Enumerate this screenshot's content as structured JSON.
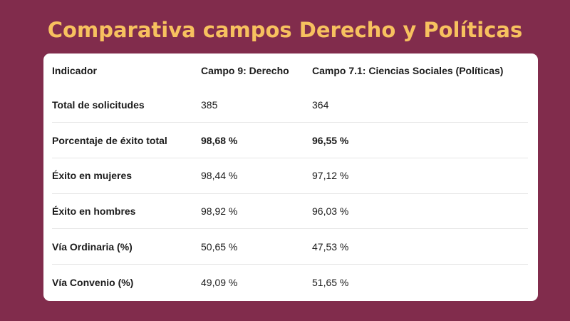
{
  "title": "Comparativa campos Derecho y Políticas",
  "table": {
    "headers": [
      "Indicador",
      "Campo 9: Derecho",
      "Campo 7.1: Ciencias Sociales (Políticas)"
    ],
    "rows": [
      {
        "label": "Total de solicitudes",
        "derecho": "385",
        "politicas": "364",
        "emphasis": false
      },
      {
        "label": "Porcentaje de éxito total",
        "derecho": "98,68 %",
        "politicas": "96,55 %",
        "emphasis": true
      },
      {
        "label": "Éxito en mujeres",
        "derecho": "98,44 %",
        "politicas": "97,12 %",
        "emphasis": false
      },
      {
        "label": "Éxito en hombres",
        "derecho": "98,92 %",
        "politicas": "96,03 %",
        "emphasis": false
      },
      {
        "label": "Vía Ordinaria (%)",
        "derecho": "50,65 %",
        "politicas": "47,53 %",
        "emphasis": false
      },
      {
        "label": "Vía Convenio (%)",
        "derecho": "49,09 %",
        "politicas": "51,65 %",
        "emphasis": false
      }
    ]
  },
  "colors": {
    "background": "#812c4c",
    "title": "#f7c15f",
    "card": "#ffffff"
  }
}
